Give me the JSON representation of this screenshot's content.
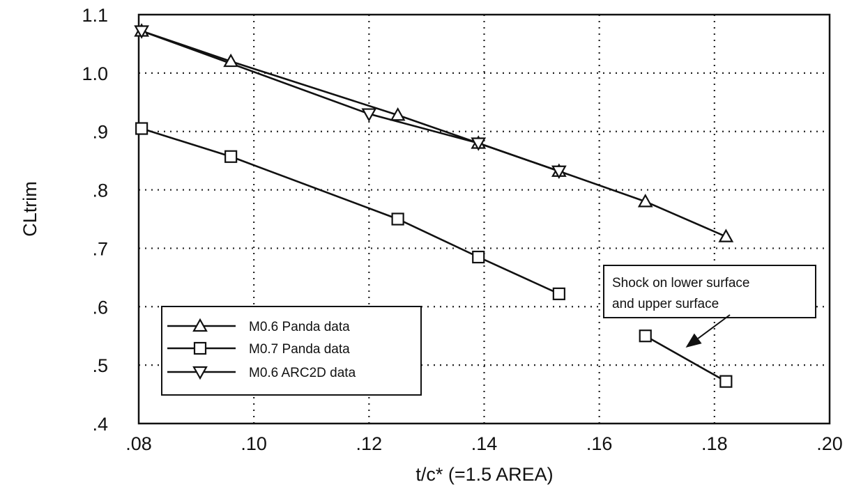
{
  "chart_data": {
    "type": "line",
    "xlabel": "t/c*  (=1.5  AREA)",
    "ylabel": "CLtrim",
    "xlim": [
      0.08,
      0.2
    ],
    "ylim": [
      0.4,
      1.1
    ],
    "x_ticks": [
      ".08",
      ".10",
      ".12",
      ".14",
      ".16",
      ".18",
      ".20"
    ],
    "y_ticks": [
      ".4",
      ".5",
      ".6",
      ".7",
      ".8",
      ".9",
      "1.0",
      "1.1"
    ],
    "grid": true,
    "legend_position": "bottom-left",
    "series": [
      {
        "name": "M0.6 Panda data",
        "marker": "triangle-up",
        "x": [
          0.0805,
          0.096,
          0.125,
          0.139,
          0.153,
          0.168,
          0.182
        ],
        "y": [
          1.072,
          1.02,
          0.928,
          0.88,
          0.832,
          0.78,
          0.72
        ]
      },
      {
        "name": "M0.7 Panda data",
        "marker": "square",
        "segments": [
          {
            "x": [
              0.0805,
              0.096,
              0.125,
              0.139,
              0.153
            ],
            "y": [
              0.905,
              0.857,
              0.75,
              0.685,
              0.622
            ]
          },
          {
            "x": [
              0.168,
              0.182
            ],
            "y": [
              0.55,
              0.472
            ]
          }
        ]
      },
      {
        "name": "M0.6 ARC2D data",
        "marker": "triangle-down",
        "x": [
          0.0805,
          0.12,
          0.139,
          0.153
        ],
        "y": [
          1.072,
          0.93,
          0.88,
          0.832
        ]
      }
    ],
    "annotation": {
      "lines": [
        "Shock on lower surface",
        "and upper surface"
      ],
      "arrow_target": [
        0.175,
        0.53
      ]
    }
  }
}
